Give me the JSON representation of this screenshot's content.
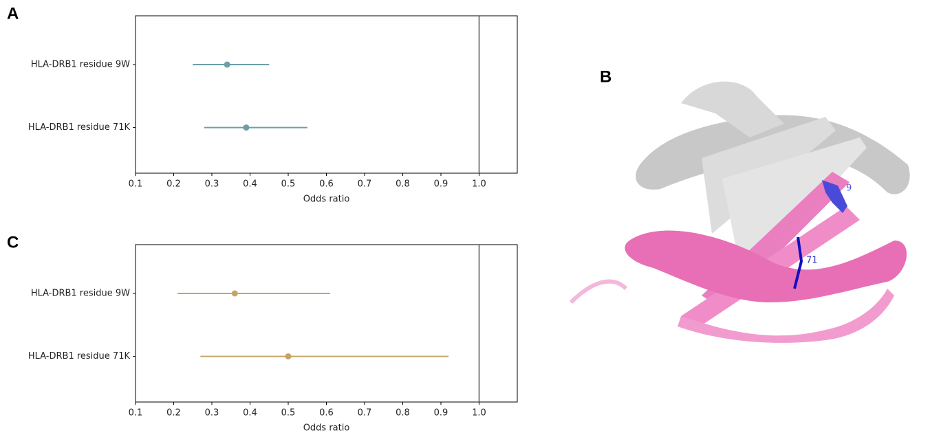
{
  "chart_data": [
    {
      "type": "forest",
      "panel_label": "A",
      "xlabel": "Odds ratio",
      "categories": [
        "HLA-DRB1 residue 9W",
        "HLA-DRB1 residue 71K"
      ],
      "values": [
        0.34,
        0.39
      ],
      "lower": [
        0.25,
        0.28
      ],
      "upper": [
        0.45,
        0.55
      ],
      "color": "#6e9ea6",
      "xlim": [
        0.1,
        1.1
      ],
      "xticks": [
        0.1,
        0.2,
        0.3,
        0.4,
        0.5,
        0.6,
        0.7,
        0.8,
        0.9,
        {
          "value": 1,
          "label": "1.0"
        }
      ],
      "reference_line": 1
    },
    {
      "type": "forest",
      "panel_label": "C",
      "xlabel": "Odds ratio",
      "categories": [
        "HLA-DRB1 residue 9W",
        "HLA-DRB1 residue 71K"
      ],
      "values": [
        0.36,
        0.5
      ],
      "lower": [
        0.21,
        0.27
      ],
      "upper": [
        0.61,
        0.92
      ],
      "color": "#c6a466",
      "xlim": [
        0.1,
        1.1
      ],
      "xticks": [
        0.1,
        0.2,
        0.3,
        0.4,
        0.5,
        0.6,
        0.7,
        0.8,
        0.9,
        {
          "value": 1,
          "label": "1.0"
        }
      ],
      "reference_line": 1
    }
  ],
  "structure": {
    "panel_label": "B",
    "residue_labels": [
      "9",
      "71"
    ]
  }
}
